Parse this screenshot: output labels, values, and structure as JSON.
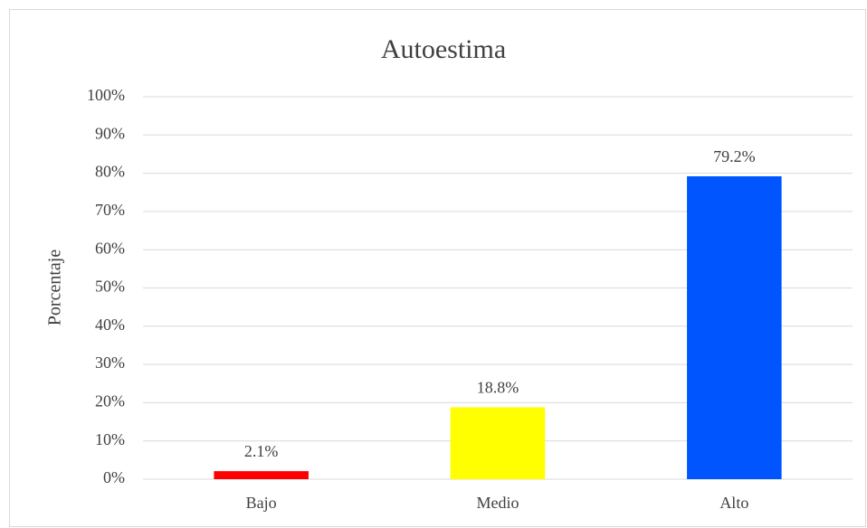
{
  "chart_data": {
    "type": "bar",
    "title": "Autoestima",
    "y_label": "Porcentaje",
    "categories": [
      "Bajo",
      "Medio",
      "Alto"
    ],
    "values": [
      2.1,
      18.8,
      79.2
    ],
    "value_labels": [
      "2.1%",
      "18.8%",
      "79.2%"
    ],
    "colors": [
      "#ff0000",
      "#ffff00",
      "#0055ff"
    ],
    "ylim": [
      0,
      100
    ],
    "yticks": [
      {
        "value": 0,
        "label": "0%"
      },
      {
        "value": 10,
        "label": "10%"
      },
      {
        "value": 20,
        "label": "20%"
      },
      {
        "value": 30,
        "label": "30%"
      },
      {
        "value": 40,
        "label": "40%"
      },
      {
        "value": 50,
        "label": "50%"
      },
      {
        "value": 60,
        "label": "60%"
      },
      {
        "value": 70,
        "label": "70%"
      },
      {
        "value": 80,
        "label": "80%"
      },
      {
        "value": 90,
        "label": "90%"
      },
      {
        "value": 100,
        "label": "100%"
      }
    ],
    "grid": true
  }
}
